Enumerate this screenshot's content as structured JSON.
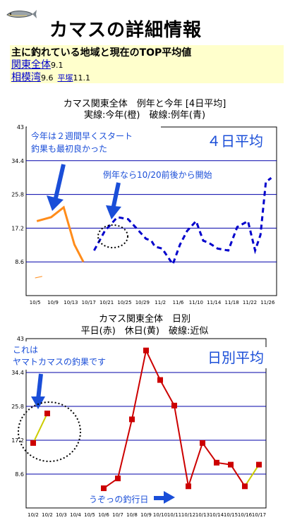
{
  "header": {
    "title": "カマスの詳細情報",
    "fish_icon": "barracuda-fish-icon"
  },
  "summary": {
    "heading": "主に釣れている地域と現在のTOP平均値",
    "rows": [
      {
        "area": "関東全体",
        "value": "9.1",
        "sub_label": "",
        "sub_value": ""
      },
      {
        "area": "相模湾",
        "value": "9.6",
        "sub_label": "平塚",
        "sub_value": "11.1"
      }
    ]
  },
  "colors": {
    "current_year": "#ff8c1a",
    "normal_year": "#0000cc",
    "weekday": "#cc0000",
    "holiday": "#cccc00",
    "annotation": "#1a4ed8",
    "grid": "#0000aa",
    "summary_bg": "#ffffcc"
  },
  "chart_data": [
    {
      "type": "line",
      "title": "カマス関東全体　例年と今年 [4日平均]",
      "subtitle": "実線:今年(橙)　破線:例年(青)",
      "categories": [
        "10/5",
        "10/9",
        "10/13",
        "10/17",
        "10/21",
        "10/25",
        "10/29",
        "11/2",
        "11/6",
        "11/10",
        "11/14",
        "11/18",
        "11/22",
        "11/26"
      ],
      "y_ticks": [
        "8.6",
        "17.2",
        "25.8",
        "34.4",
        "43"
      ],
      "ylim": [
        0,
        43
      ],
      "grid": true,
      "series": [
        {
          "values": [
            [
              0.0,
              4.5
            ],
            [
              0.4,
              4.9
            ],
            [
              0.1,
              19.0
            ],
            [
              0.9,
              20.0
            ],
            [
              1.6,
              22.5
            ],
            [
              2.2,
              13.0
            ],
            [
              2.7,
              8.6
            ]
          ]
        },
        {
          "values": [
            [
              3.3,
              11.5
            ],
            [
              3.9,
              16.5
            ],
            [
              4.6,
              20.0
            ],
            [
              5.2,
              19.5
            ],
            [
              6.2,
              14.5
            ],
            [
              6.5,
              14.0
            ],
            [
              6.7,
              12.5
            ],
            [
              7.1,
              12.0
            ],
            [
              7.7,
              8.0
            ],
            [
              8.1,
              13.0
            ],
            [
              8.5,
              16.5
            ],
            [
              9.0,
              19.0
            ],
            [
              9.4,
              14.0
            ],
            [
              9.7,
              13.5
            ],
            [
              10.2,
              12.0
            ],
            [
              10.8,
              11.5
            ],
            [
              11.3,
              17.5
            ],
            [
              11.9,
              19.0
            ],
            [
              12.3,
              11.5
            ],
            [
              12.6,
              15.5
            ],
            [
              12.9,
              29.0
            ],
            [
              13.2,
              30.0
            ]
          ]
        }
      ],
      "annotations": [
        "今年は２週間早くスタート",
        "釣果も最初良かった",
        "例年なら10/20前後から開始"
      ],
      "label_box": "４日平均"
    },
    {
      "type": "line",
      "title": "カマス関東全体　日別",
      "subtitle": "平日(赤)　休日(黄)　破線:近似",
      "categories": [
        "10/2",
        "10/2",
        "10/3",
        "10/4",
        "10/5",
        "10/6",
        "10/7",
        "10/8",
        "10/9",
        "10/10",
        "10/11",
        "10/12",
        "10/13",
        "10/14",
        "10/15",
        "10/16",
        "10/17"
      ],
      "y_ticks": [
        "8.6",
        "17.2",
        "25.8",
        "34.4",
        "43"
      ],
      "ylim": [
        0,
        43
      ],
      "grid": true,
      "series": [
        {
          "values": [
            [
              0.0,
              16.5
            ],
            [
              1.0,
              24.0
            ]
          ]
        },
        {
          "values": [
            [
              5.0,
              5.0
            ],
            [
              6.0,
              7.5
            ],
            [
              7.0,
              22.5
            ],
            [
              8.0,
              40.0
            ],
            [
              9.0,
              32.5
            ],
            [
              10.0,
              26.0
            ],
            [
              11.0,
              5.5
            ],
            [
              12.0,
              16.5
            ],
            [
              13.0,
              11.5
            ],
            [
              14.0,
              11.0
            ],
            [
              15.0,
              5.5
            ],
            [
              16.0,
              11.0
            ]
          ],
          "types": [
            "w",
            "w",
            "w",
            "h",
            "w",
            "h",
            "w",
            "w",
            "w",
            "w",
            "h",
            "h"
          ]
        }
      ],
      "annotations": [
        "これは",
        "ヤマトカマスの釣果です",
        "うぞっの釣行日"
      ],
      "label_box": "日別平均"
    }
  ]
}
